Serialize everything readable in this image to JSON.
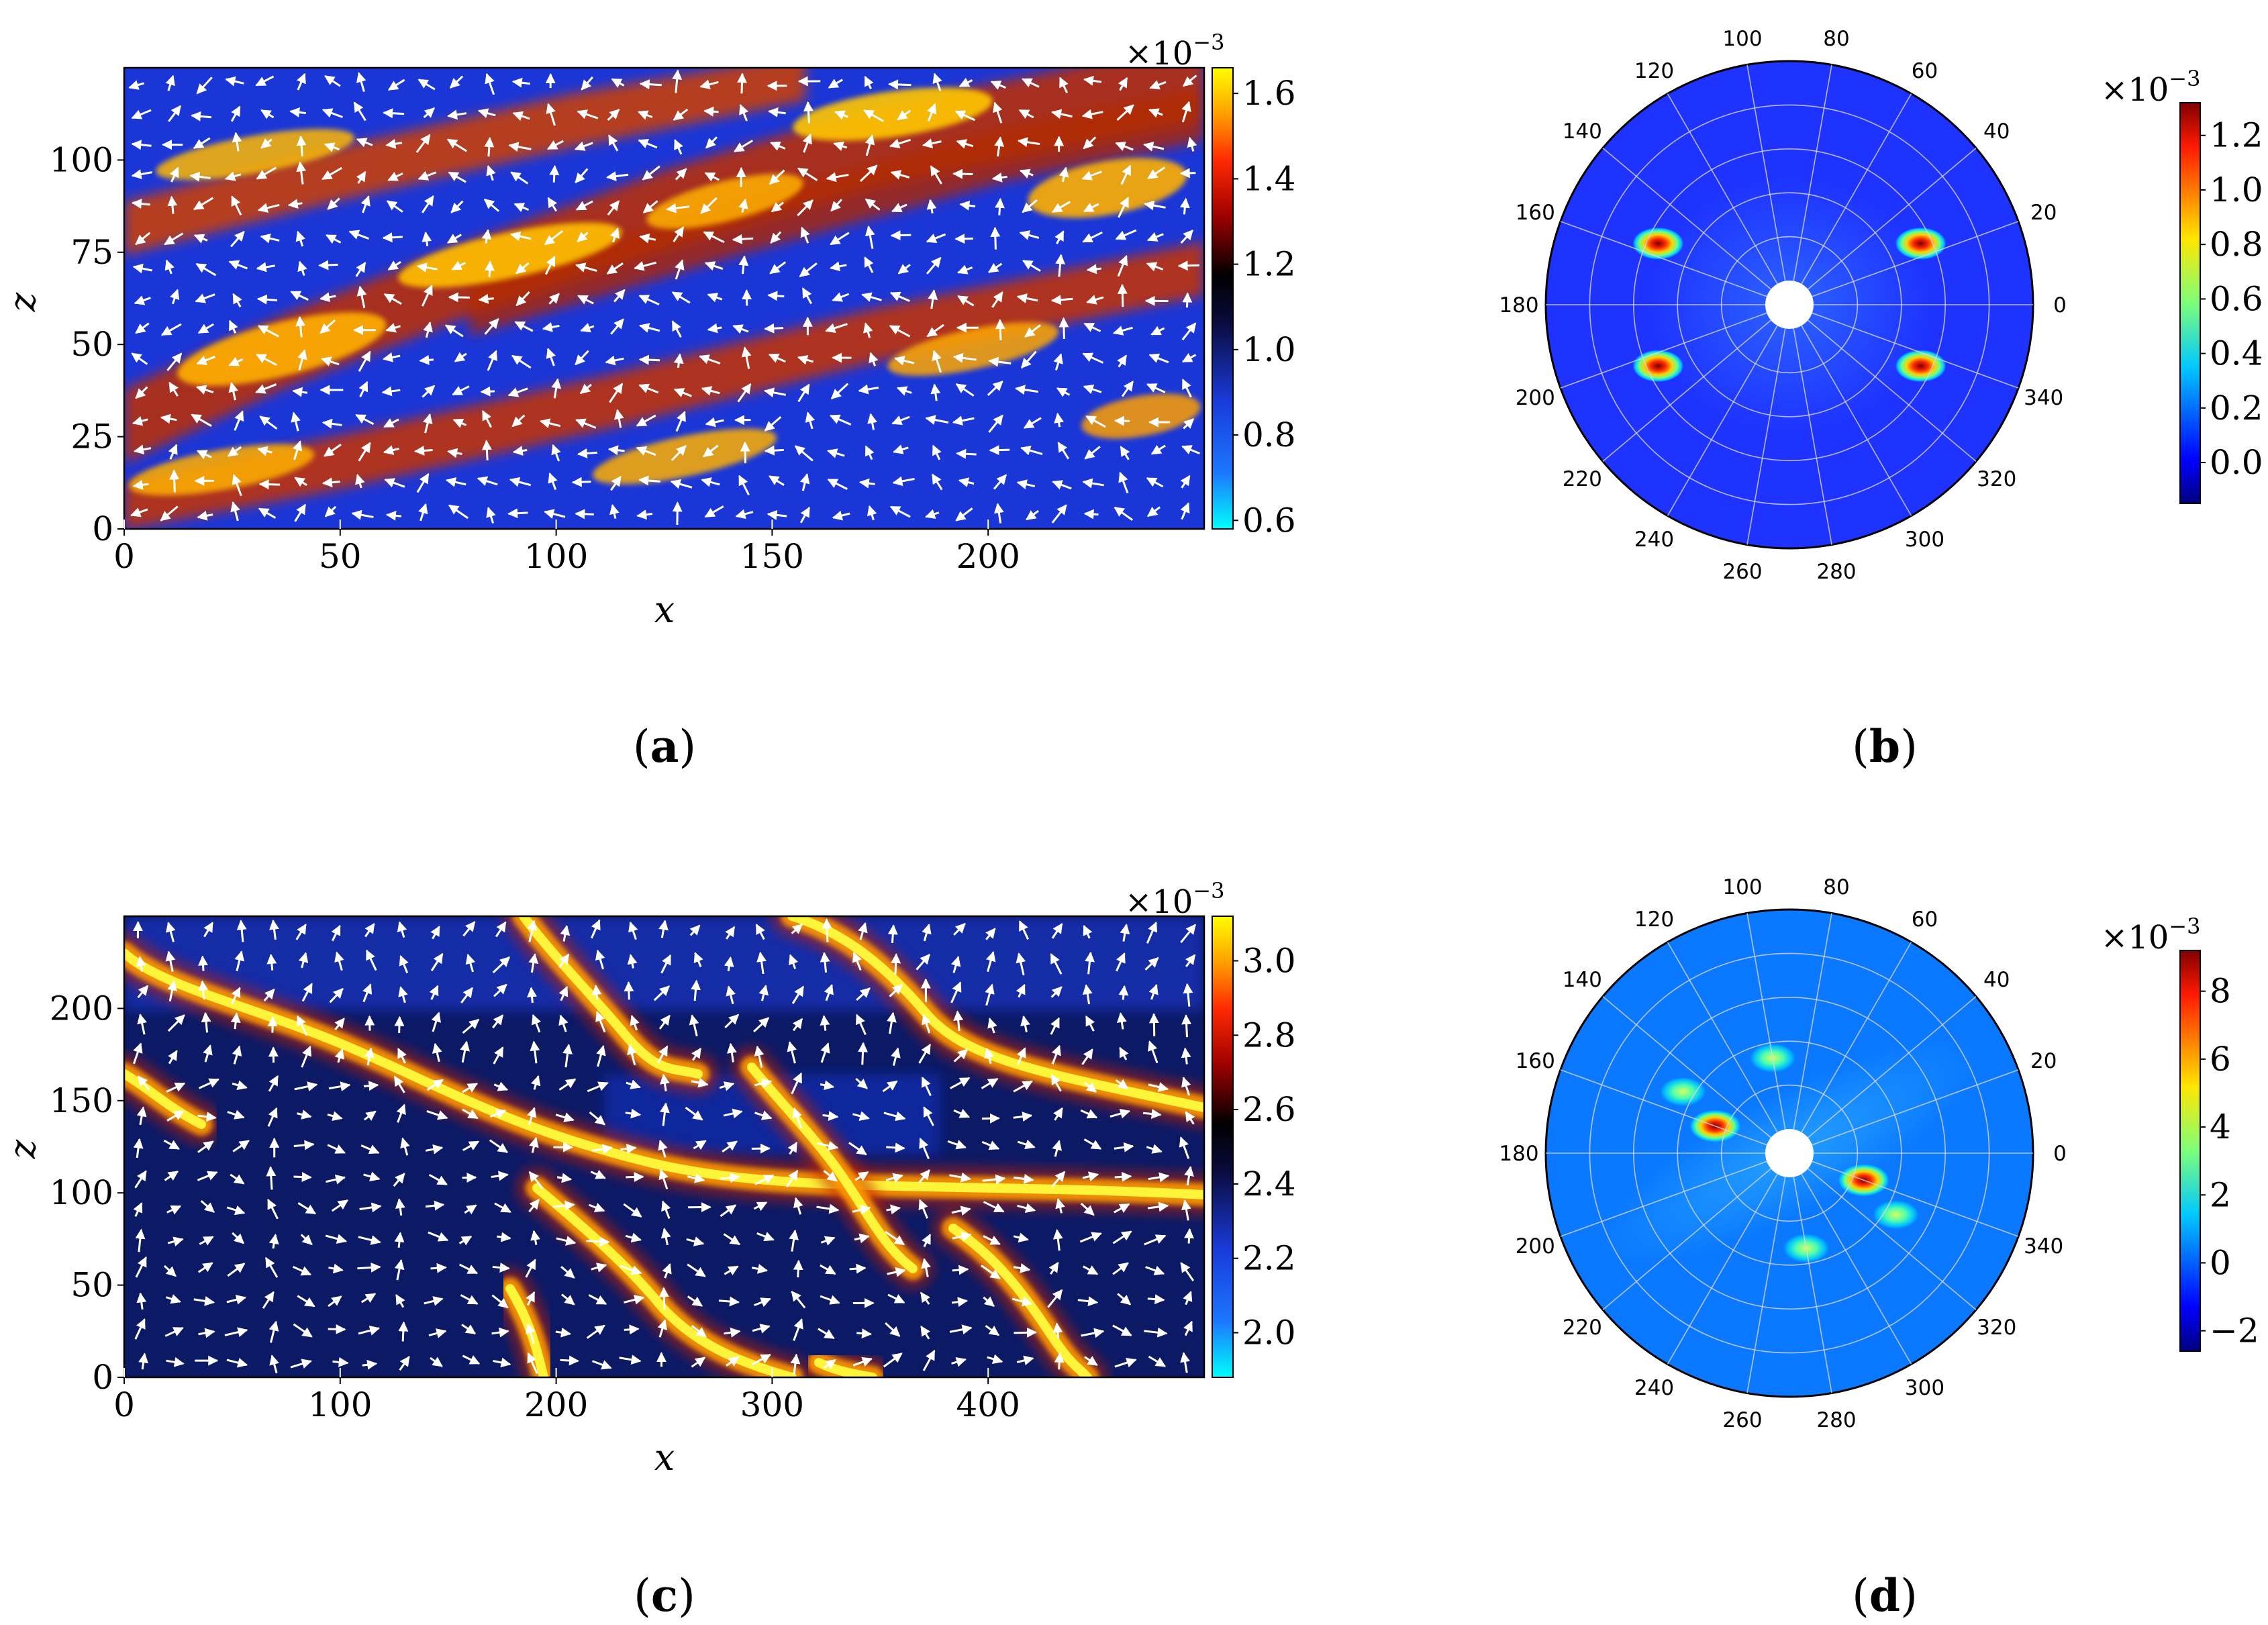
{
  "chart_data": [
    {
      "id": "a",
      "type": "heatmap",
      "caption_letter": "a",
      "xlabel": "x",
      "ylabel": "z",
      "xlim": [
        0,
        250
      ],
      "ylim": [
        0,
        125
      ],
      "xticks": [
        "0",
        "50",
        "100",
        "150",
        "200"
      ],
      "xtick_values": [
        0,
        50,
        100,
        150,
        200
      ],
      "yticks": [
        "0",
        "25",
        "50",
        "75",
        "100"
      ],
      "ytick_values": [
        0,
        25,
        50,
        75,
        100
      ],
      "colorbar": {
        "range": [
          0.58,
          1.66
        ],
        "ticks": [
          "0.6",
          "0.8",
          "1.0",
          "1.2",
          "1.4",
          "1.6"
        ],
        "tick_values": [
          0.6,
          0.8,
          1.0,
          1.2,
          1.4,
          1.6
        ],
        "scale_base": "×10",
        "scale_exp": "−3",
        "colormap": "cyan-blue-black-red-yellow"
      },
      "overlay": "white velocity arrows (quiver)",
      "pattern": "oblique turbulent bands"
    },
    {
      "id": "b",
      "type": "polar-heatmap",
      "caption_letter": "b",
      "angle_ticks": [
        "0",
        "20",
        "40",
        "60",
        "80",
        "100",
        "120",
        "140",
        "160",
        "180",
        "200",
        "220",
        "240",
        "260",
        "280",
        "300",
        "320",
        "340"
      ],
      "angle_tick_values": [
        0,
        20,
        40,
        60,
        80,
        100,
        120,
        140,
        160,
        180,
        200,
        220,
        240,
        260,
        280,
        300,
        320,
        340
      ],
      "colorbar": {
        "range": [
          -0.15,
          1.32
        ],
        "ticks": [
          "0.0",
          "0.2",
          "0.4",
          "0.6",
          "0.8",
          "1.0",
          "1.2"
        ],
        "tick_values": [
          0.0,
          0.2,
          0.4,
          0.6,
          0.8,
          1.0,
          1.2
        ],
        "scale_base": "×10",
        "scale_exp": "−3",
        "colormap": "jet"
      },
      "peaks": [
        {
          "angle_deg": 25,
          "radius": 0.55,
          "value": 1.3
        },
        {
          "angle_deg": 155,
          "radius": 0.55,
          "value": 1.3
        },
        {
          "angle_deg": 205,
          "radius": 0.55,
          "value": 1.3
        },
        {
          "angle_deg": 335,
          "radius": 0.55,
          "value": 1.3
        }
      ]
    },
    {
      "id": "c",
      "type": "heatmap",
      "caption_letter": "c",
      "xlabel": "x",
      "ylabel": "z",
      "xlim": [
        0,
        500
      ],
      "ylim": [
        0,
        250
      ],
      "xticks": [
        "0",
        "100",
        "200",
        "300",
        "400"
      ],
      "xtick_values": [
        0,
        100,
        200,
        300,
        400
      ],
      "yticks": [
        "0",
        "50",
        "100",
        "150",
        "200"
      ],
      "ytick_values": [
        0,
        50,
        100,
        150,
        200
      ],
      "colorbar": {
        "range": [
          1.88,
          3.12
        ],
        "ticks": [
          "2.0",
          "2.2",
          "2.4",
          "2.6",
          "2.8",
          "3.0"
        ],
        "tick_values": [
          2.0,
          2.2,
          2.4,
          2.6,
          2.8,
          3.0
        ],
        "scale_base": "×10",
        "scale_exp": "−3",
        "colormap": "cyan-blue-black-red-yellow"
      },
      "overlay": "white velocity arrows (quiver)",
      "pattern": "narrow oblique turbulent stripes"
    },
    {
      "id": "d",
      "type": "polar-heatmap",
      "caption_letter": "d",
      "angle_ticks": [
        "0",
        "20",
        "40",
        "60",
        "80",
        "100",
        "120",
        "140",
        "160",
        "180",
        "200",
        "220",
        "240",
        "260",
        "280",
        "300",
        "320",
        "340"
      ],
      "angle_tick_values": [
        0,
        20,
        40,
        60,
        80,
        100,
        120,
        140,
        160,
        180,
        200,
        220,
        240,
        260,
        280,
        300,
        320,
        340
      ],
      "colorbar": {
        "range": [
          -2.6,
          9.2
        ],
        "ticks": [
          "−2",
          "0",
          "2",
          "4",
          "6",
          "8"
        ],
        "tick_values": [
          -2,
          0,
          2,
          4,
          6,
          8
        ],
        "scale_base": "×10",
        "scale_exp": "−3",
        "colormap": "jet"
      },
      "peaks": [
        {
          "angle_deg": 160,
          "radius": 0.25,
          "value": 8.8
        },
        {
          "angle_deg": 340,
          "radius": 0.25,
          "value": 8.8
        },
        {
          "angle_deg": 100,
          "radius": 0.33,
          "value": 3.5
        },
        {
          "angle_deg": 280,
          "radius": 0.33,
          "value": 3.5
        },
        {
          "angle_deg": 150,
          "radius": 0.45,
          "value": 3.0
        },
        {
          "angle_deg": 330,
          "radius": 0.45,
          "value": 3.0
        }
      ]
    }
  ]
}
